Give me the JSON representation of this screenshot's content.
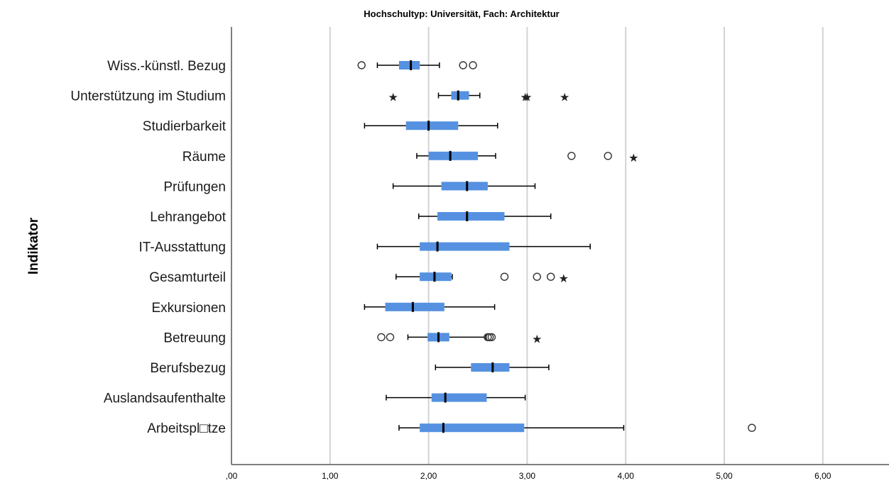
{
  "chart_data": {
    "type": "boxplot",
    "orientation": "horizontal",
    "title": "Hochschultyp: Universität, Fach: Architektur",
    "xlabel": "",
    "ylabel": "Indikator",
    "xlim": [
      0,
      6.6
    ],
    "xticks": [
      ",00",
      "1,00",
      "2,00",
      "3,00",
      "4,00",
      "5,00",
      "6,00"
    ],
    "xtick_values": [
      0,
      1,
      2,
      3,
      4,
      5,
      6
    ],
    "grid": "vertical",
    "box_color": "#5591e0",
    "categories": [
      "Wiss.-künstl. Bezug",
      "Unterstützung im Studium",
      "Studierbarkeit",
      "Räume",
      "Prüfungen",
      "Lehrangebot",
      "IT-Ausstattung",
      "Gesamturteil",
      "Exkursionen",
      "Betreuung",
      "Berufsbezug",
      "Auslandsaufenthalte",
      "Arbeitspl□tze"
    ],
    "boxes": [
      {
        "whisker_low": 1.48,
        "q1": 1.7,
        "median": 1.82,
        "q3": 1.91,
        "whisker_high": 2.11,
        "outliers": [
          1.32,
          2.35,
          2.45
        ],
        "extremes": []
      },
      {
        "whisker_low": 2.1,
        "q1": 2.23,
        "median": 2.3,
        "q3": 2.41,
        "whisker_high": 2.52,
        "outliers": [],
        "extremes": [
          1.64,
          2.98,
          3.0,
          3.38
        ]
      },
      {
        "whisker_low": 1.35,
        "q1": 1.77,
        "median": 2.0,
        "q3": 2.3,
        "whisker_high": 2.7,
        "outliers": [],
        "extremes": []
      },
      {
        "whisker_low": 1.88,
        "q1": 2.0,
        "median": 2.22,
        "q3": 2.5,
        "whisker_high": 2.68,
        "outliers": [
          3.45,
          3.82
        ],
        "extremes": [
          4.08
        ]
      },
      {
        "whisker_low": 1.64,
        "q1": 2.13,
        "median": 2.39,
        "q3": 2.6,
        "whisker_high": 3.08,
        "outliers": [],
        "extremes": []
      },
      {
        "whisker_low": 1.9,
        "q1": 2.09,
        "median": 2.39,
        "q3": 2.77,
        "whisker_high": 3.24,
        "outliers": [],
        "extremes": []
      },
      {
        "whisker_low": 1.48,
        "q1": 1.91,
        "median": 2.09,
        "q3": 2.82,
        "whisker_high": 3.64,
        "outliers": [],
        "extremes": []
      },
      {
        "whisker_low": 1.67,
        "q1": 1.91,
        "median": 2.06,
        "q3": 2.23,
        "whisker_high": 2.24,
        "outliers": [
          2.77,
          3.1,
          3.24
        ],
        "extremes": [
          3.37
        ]
      },
      {
        "whisker_low": 1.35,
        "q1": 1.56,
        "median": 1.84,
        "q3": 2.16,
        "whisker_high": 2.67,
        "outliers": [],
        "extremes": []
      },
      {
        "whisker_low": 1.79,
        "q1": 1.99,
        "median": 2.1,
        "q3": 2.21,
        "whisker_high": 2.58,
        "outliers": [
          1.52,
          1.61,
          2.6,
          2.62,
          2.64
        ],
        "extremes": [
          3.1
        ]
      },
      {
        "whisker_low": 2.07,
        "q1": 2.43,
        "median": 2.65,
        "q3": 2.82,
        "whisker_high": 3.22,
        "outliers": [],
        "extremes": []
      },
      {
        "whisker_low": 1.57,
        "q1": 2.03,
        "median": 2.17,
        "q3": 2.59,
        "whisker_high": 2.98,
        "outliers": [],
        "extremes": []
      },
      {
        "whisker_low": 1.7,
        "q1": 1.91,
        "median": 2.15,
        "q3": 2.97,
        "whisker_high": 3.98,
        "outliers": [
          5.28
        ],
        "extremes": []
      }
    ]
  }
}
